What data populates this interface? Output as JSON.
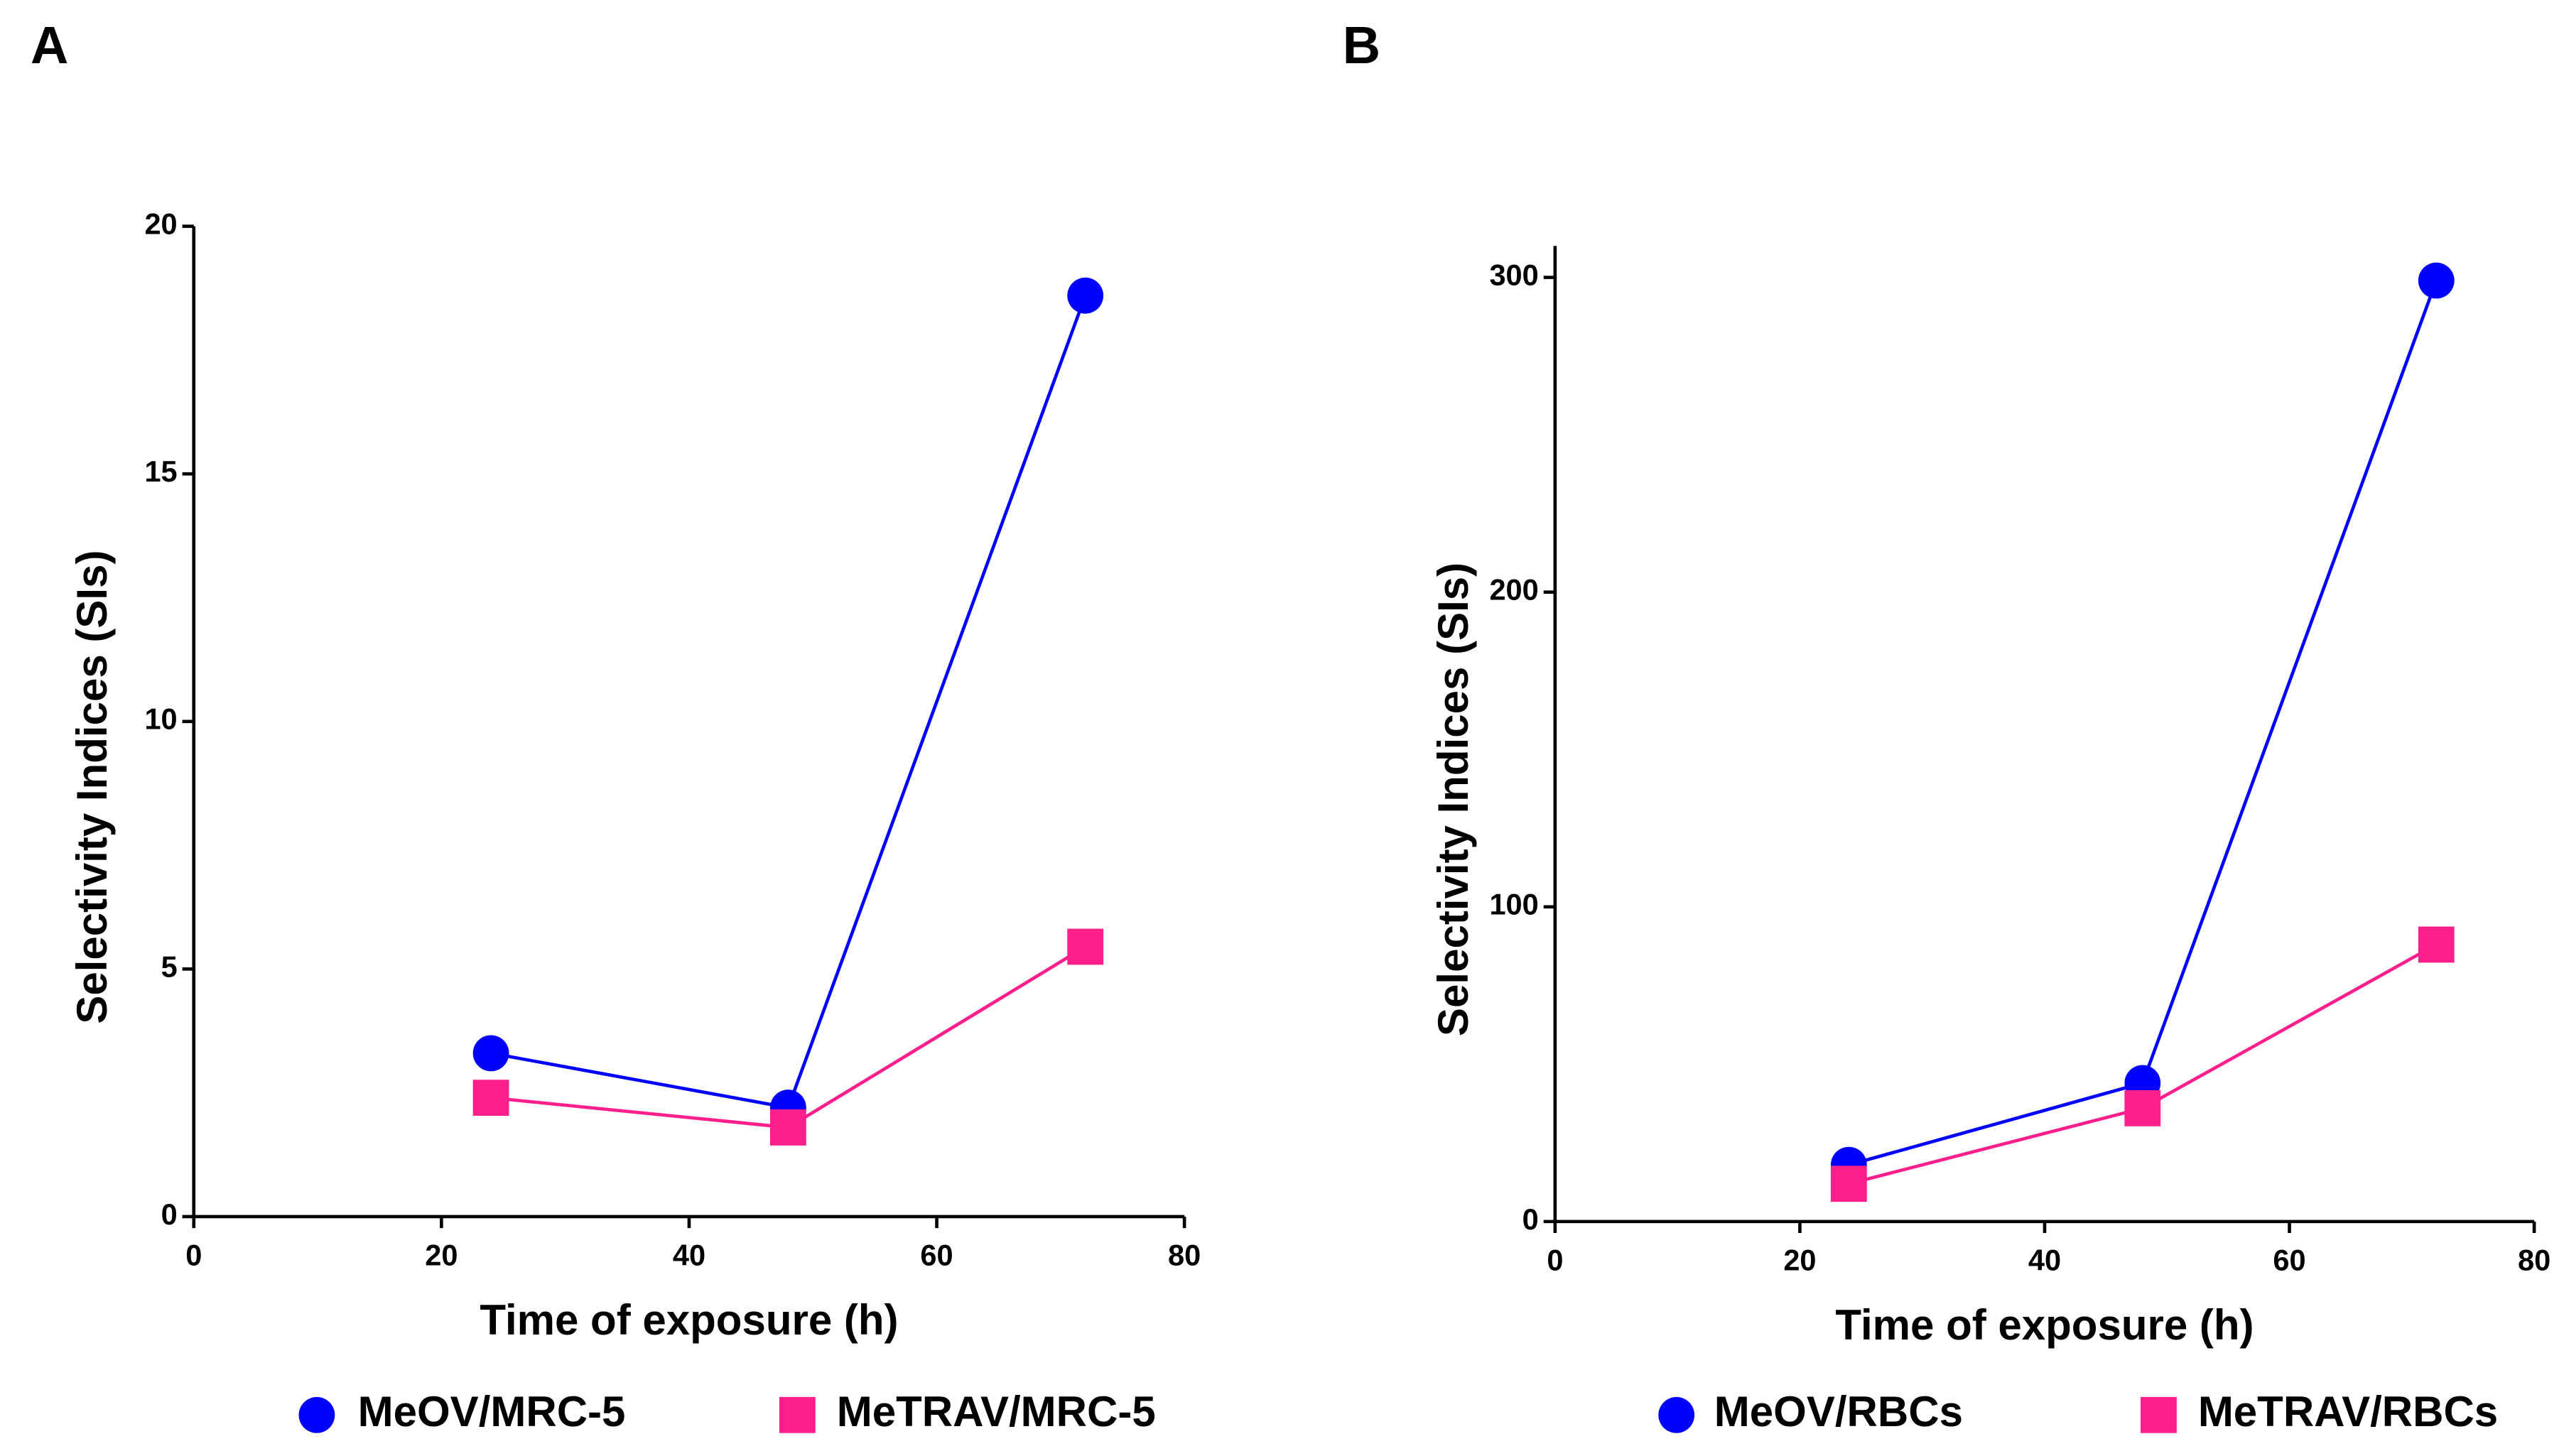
{
  "chart_data": [
    {
      "type": "line",
      "panel": "A",
      "x_label": "Time of exposure (h)",
      "y_label": "Selectivity Indices (SIs)",
      "x": [
        24,
        48,
        72
      ],
      "series": [
        {
          "name": "MeOV/MRC-5",
          "color": "#0000ff",
          "marker": "circle",
          "values": [
            3.3,
            2.2,
            18.6
          ]
        },
        {
          "name": "MeTRAV/MRC-5",
          "color": "#ff1f8c",
          "marker": "square",
          "values": [
            2.4,
            1.8,
            5.45
          ]
        }
      ],
      "xlim": [
        0,
        80
      ],
      "xticks": [
        0,
        20,
        40,
        60,
        80
      ],
      "ylim": [
        0,
        20
      ],
      "yticks": [
        0,
        5,
        10,
        15,
        20
      ]
    },
    {
      "type": "line",
      "panel": "B",
      "x_label": "Time of exposure (h)",
      "y_label": "Selectivity Indices (SIs)",
      "x": [
        24,
        48,
        72
      ],
      "series": [
        {
          "name": "MeOV/RBCs",
          "color": "#0000ff",
          "marker": "circle",
          "values": [
            18,
            44,
            299
          ]
        },
        {
          "name": "MeTRAV/RBCs",
          "color": "#ff1f8c",
          "marker": "square",
          "values": [
            12,
            36,
            88
          ]
        }
      ],
      "xlim": [
        0,
        80
      ],
      "xticks": [
        0,
        20,
        40,
        60,
        80
      ],
      "ylim": [
        0,
        310
      ],
      "yticks": [
        0,
        100,
        200,
        300
      ]
    }
  ]
}
